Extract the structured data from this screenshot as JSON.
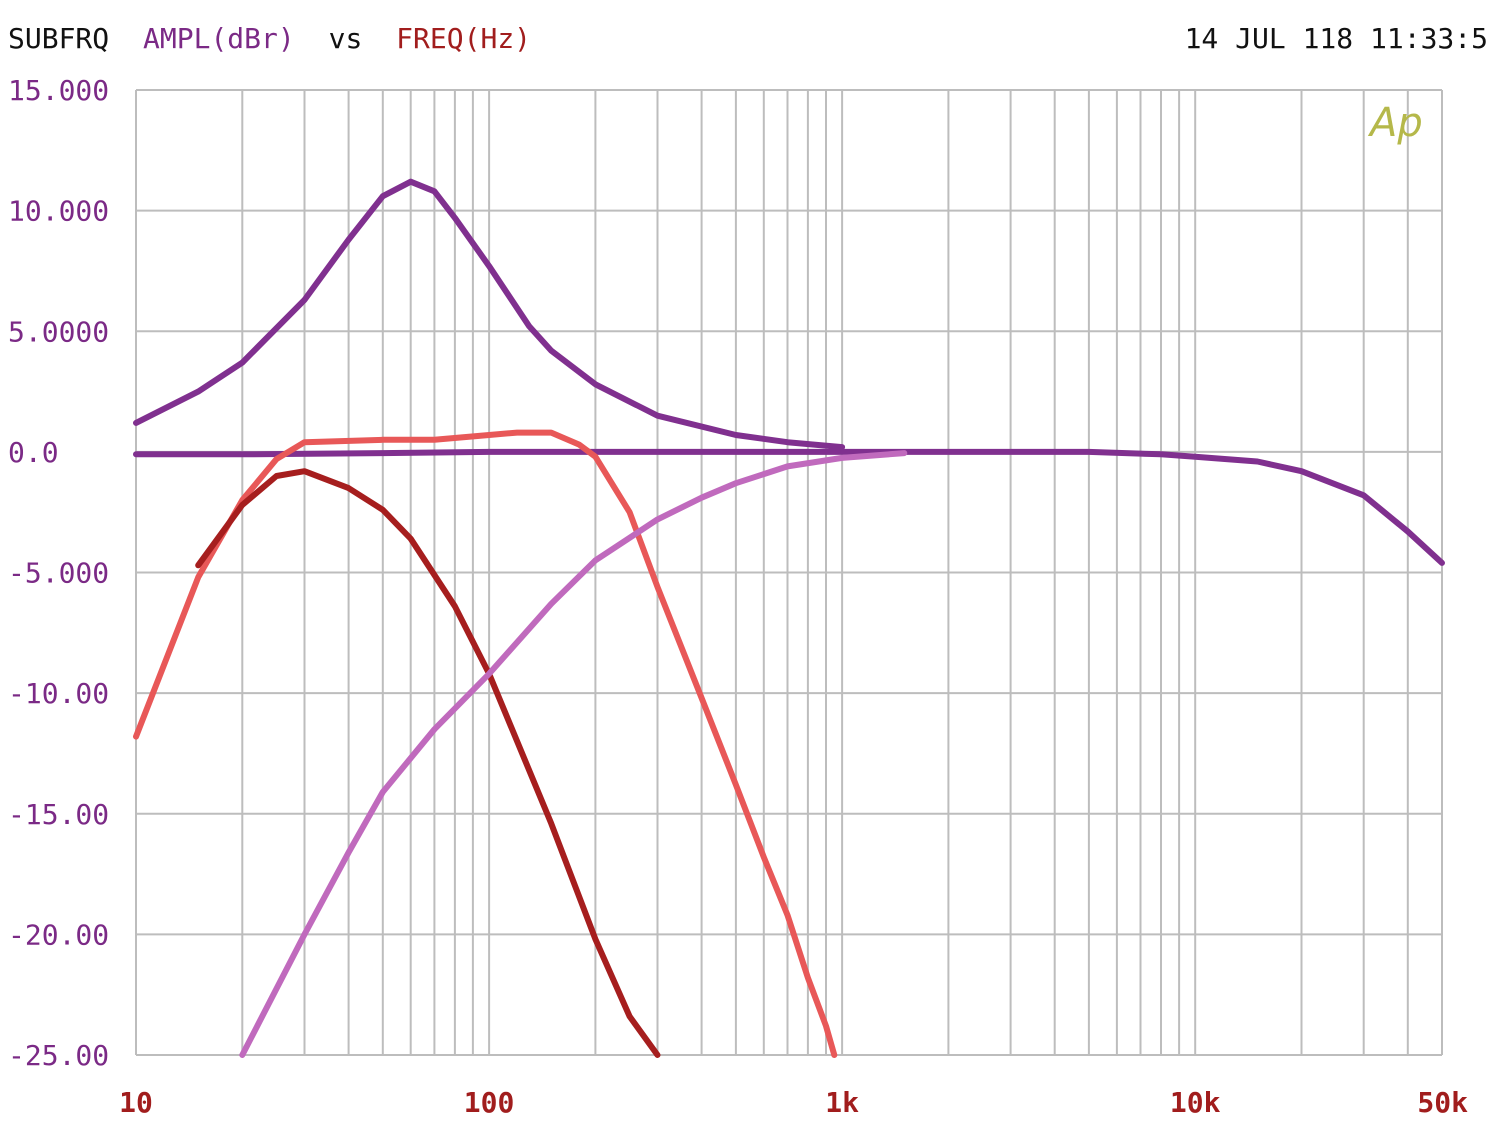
{
  "header": {
    "prefix": "SUBFRQ",
    "y_measure": "AMPL(dBr)",
    "vs": "vs",
    "x_measure": "FREQ(Hz)",
    "timestamp": "14 JUL 118 11:33:5"
  },
  "logo": "Ap",
  "chart_data": {
    "type": "line",
    "title": "",
    "xlabel": "FREQ(Hz)",
    "ylabel": "AMPL(dBr)",
    "xscale": "log",
    "xlim": [
      10,
      50000
    ],
    "ylim": [
      -25,
      15
    ],
    "grid": true,
    "legend": "none",
    "y_ticks": [
      {
        "value": 15,
        "label": "15.000"
      },
      {
        "value": 10,
        "label": "10.000"
      },
      {
        "value": 5,
        "label": "5.0000"
      },
      {
        "value": 0,
        "label": "0.0"
      },
      {
        "value": -5,
        "label": "-5.000"
      },
      {
        "value": -10,
        "label": "-10.00"
      },
      {
        "value": -15,
        "label": "-15.00"
      },
      {
        "value": -20,
        "label": "-20.00"
      },
      {
        "value": -25,
        "label": "-25.00"
      }
    ],
    "x_ticks": [
      {
        "value": 10,
        "label": "10"
      },
      {
        "value": 100,
        "label": "100"
      },
      {
        "value": 1000,
        "label": "1k"
      },
      {
        "value": 10000,
        "label": "10k"
      },
      {
        "value": 50000,
        "label": "50k"
      }
    ],
    "colors": {
      "header_text": "#111111",
      "y_measure": "#7b2a86",
      "x_measure": "#a11d1d",
      "logo": "#b5b84a",
      "grid": "#bdbdbd"
    },
    "series": [
      {
        "color": "#80308f",
        "x": [
          10,
          15,
          20,
          30,
          40,
          50,
          60,
          70,
          80,
          100,
          130,
          150,
          200,
          300,
          500,
          700,
          1000
        ],
        "y": [
          1.2,
          2.5,
          3.7,
          6.3,
          8.8,
          10.6,
          11.2,
          10.8,
          9.7,
          7.7,
          5.2,
          4.2,
          2.8,
          1.5,
          0.7,
          0.4,
          0.2
        ]
      },
      {
        "color": "#80308f",
        "x": [
          10,
          20,
          50,
          100,
          500,
          1000,
          3000,
          5000,
          8000,
          10000,
          15000,
          20000,
          30000,
          40000,
          50000
        ],
        "y": [
          -0.1,
          -0.1,
          -0.05,
          0,
          0,
          0,
          0,
          0,
          -0.1,
          -0.2,
          -0.4,
          -0.8,
          -1.8,
          -3.3,
          -4.6
        ]
      },
      {
        "color": "#e85858",
        "x": [
          10,
          15,
          20,
          25,
          30,
          50,
          70,
          100,
          120,
          150,
          180,
          200,
          250,
          300,
          400,
          500,
          600,
          700,
          800,
          900,
          950
        ],
        "y": [
          -11.8,
          -5.2,
          -2,
          -0.3,
          0.4,
          0.5,
          0.5,
          0.7,
          0.8,
          0.8,
          0.3,
          -0.2,
          -2.5,
          -5.6,
          -10.2,
          -13.8,
          -16.8,
          -19.2,
          -21.8,
          -23.8,
          -25
        ]
      },
      {
        "color": "#a61e1e",
        "x": [
          15,
          20,
          25,
          30,
          40,
          50,
          60,
          80,
          100,
          150,
          200,
          250,
          300
        ],
        "y": [
          -4.7,
          -2.2,
          -1,
          -0.8,
          -1.5,
          -2.4,
          -3.6,
          -6.4,
          -9.2,
          -15.4,
          -20.2,
          -23.4,
          -25
        ]
      },
      {
        "color": "#c06abd",
        "x": [
          20,
          30,
          40,
          50,
          70,
          100,
          150,
          200,
          300,
          400,
          500,
          700,
          1000,
          1500
        ],
        "y": [
          -25,
          -20,
          -16.6,
          -14.1,
          -11.5,
          -9.2,
          -6.3,
          -4.5,
          -2.8,
          -1.9,
          -1.3,
          -0.6,
          -0.25,
          -0.05
        ]
      }
    ]
  }
}
